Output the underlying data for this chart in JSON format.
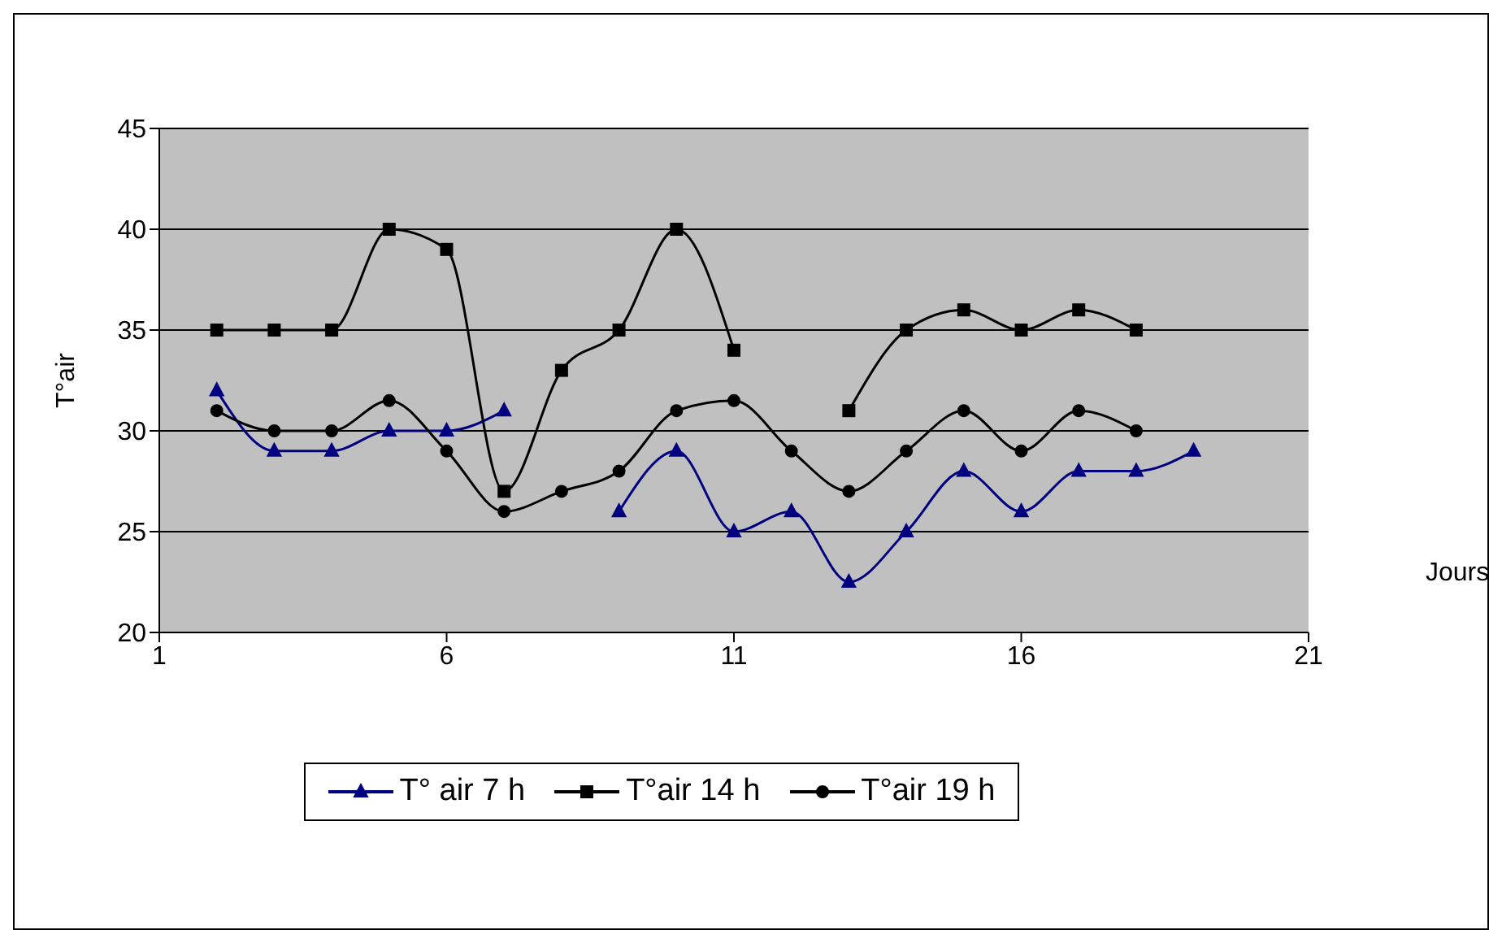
{
  "chart_data": {
    "type": "line",
    "xlabel": "Jours",
    "ylabel": "T°air",
    "xlim": [
      1,
      21
    ],
    "xticks": [
      1,
      6,
      11,
      16,
      21
    ],
    "ylim": [
      20,
      45
    ],
    "yticks": [
      20,
      25,
      30,
      35,
      40,
      45
    ],
    "grid": "y",
    "legend": "bottom",
    "x": [
      2,
      3,
      4,
      5,
      6,
      7,
      8,
      9,
      10,
      11,
      12,
      13,
      14,
      15,
      16,
      17,
      18,
      19
    ],
    "series": [
      {
        "name": "T° air 7 h",
        "color": "#000080",
        "marker": "triangle",
        "values": [
          32,
          29,
          29,
          30,
          30,
          31,
          null,
          26,
          29,
          25,
          26,
          22.5,
          25,
          28,
          26,
          28,
          28,
          29
        ]
      },
      {
        "name": "T°air 14 h",
        "color": "#000000",
        "marker": "square",
        "values": [
          35,
          35,
          35,
          40,
          39,
          27,
          33,
          35,
          40,
          34,
          null,
          31,
          35,
          36,
          35,
          36,
          35,
          null
        ]
      },
      {
        "name": "T°air 19 h",
        "color": "#000000",
        "marker": "circle",
        "values": [
          31,
          30,
          30,
          31.5,
          29,
          26,
          27,
          28,
          31,
          31.5,
          29,
          27,
          29,
          31,
          29,
          31,
          30,
          null
        ]
      }
    ]
  }
}
